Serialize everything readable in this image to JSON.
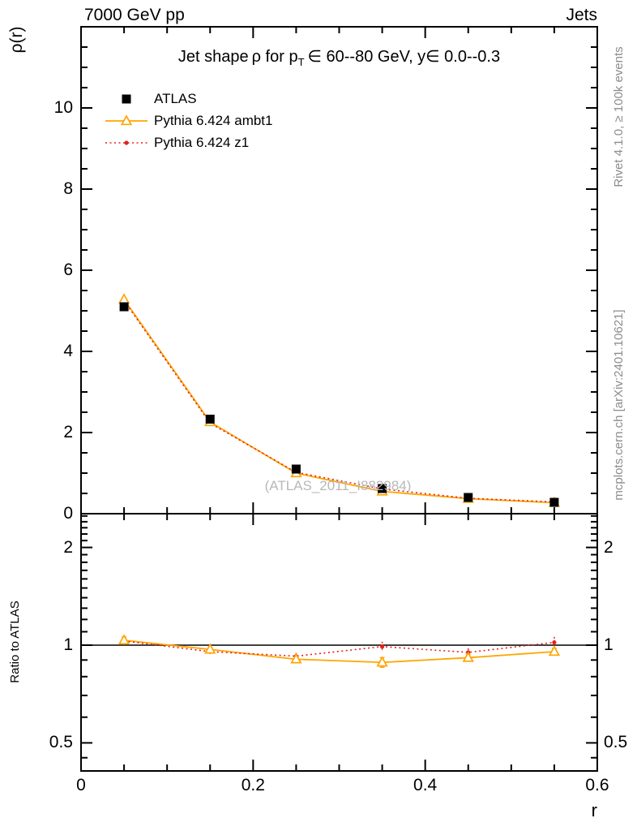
{
  "header": {
    "left": "7000 GeV pp",
    "right": "Jets"
  },
  "title": {
    "pre": "Jet shape ρ for p",
    "sub": "T",
    "post": " ∈ 60--80 GeV, y∈ 0.0--0.3"
  },
  "labels": {
    "y_main": "ρ(r)",
    "y_ratio": "Ratio to ATLAS",
    "x": "r"
  },
  "notes": {
    "rivet": "Rivet 4.1.0, ≥ 100k events",
    "mcplots": "mcplots.cern.ch [arXiv:2401.10621]"
  },
  "watermark": {
    "text": "(ATLAS_2011_I882984)"
  },
  "colors": {
    "atlas": "#000000",
    "ambt1": "#ffa500",
    "z1": "#e5231b",
    "frame": "#000000",
    "note_gray": "#8c8c8c",
    "watermark_gray": "#b8b8b8"
  },
  "chart_data": [
    {
      "type": "scatter",
      "panel": "main",
      "title": "Jet shape ρ for p_T ∈ 60--80 GeV, y ∈ 0.0--0.3",
      "xlabel": "r",
      "ylabel": "ρ(r)",
      "xlim": [
        0,
        0.6
      ],
      "ylim": [
        0,
        12
      ],
      "grid": false,
      "legend_position": "top-left",
      "x": [
        0.05,
        0.15,
        0.25,
        0.35,
        0.45,
        0.55
      ],
      "series": [
        {
          "name": "ATLAS",
          "marker": "filled-square",
          "line": "none",
          "values": [
            5.1,
            2.33,
            1.1,
            0.62,
            0.4,
            0.28
          ]
        },
        {
          "name": "Pythia 6.424 ambt1",
          "marker": "open-triangle",
          "line": "solid",
          "values": [
            5.28,
            2.26,
            1.0,
            0.55,
            0.37,
            0.27
          ]
        },
        {
          "name": "Pythia 6.424 z1",
          "marker": "filled-circle",
          "line": "dotted",
          "values": [
            5.25,
            2.23,
            1.02,
            0.61,
            0.38,
            0.29
          ]
        }
      ],
      "yticks": {
        "labels": [
          "0",
          "2",
          "4",
          "6",
          "8",
          "10"
        ],
        "values": [
          0,
          2,
          4,
          6,
          8,
          10
        ]
      },
      "xticks": {
        "labels": [
          "0",
          "0.2",
          "0.4",
          "0.6"
        ],
        "values": [
          0,
          0.2,
          0.4,
          0.6
        ]
      }
    },
    {
      "type": "line",
      "panel": "ratio",
      "ylabel": "Ratio to ATLAS",
      "yscale": "log",
      "ylim": [
        0.41,
        2.52
      ],
      "reference_line": 1,
      "x": [
        0.05,
        0.15,
        0.25,
        0.35,
        0.45,
        0.55
      ],
      "series": [
        {
          "name": "Pythia 6.424 ambt1",
          "marker": "open-triangle",
          "line": "solid",
          "values": [
            1.035,
            0.97,
            0.905,
            0.885,
            0.915,
            0.955
          ],
          "errors": [
            0.025,
            0.012,
            0.018,
            0.03,
            0.022,
            0.022
          ]
        },
        {
          "name": "Pythia 6.424 z1",
          "marker": "filled-circle",
          "line": "dotted",
          "values": [
            1.03,
            0.955,
            0.925,
            0.99,
            0.95,
            1.02
          ],
          "errors": [
            0.03,
            0.015,
            0.022,
            0.035,
            0.028,
            0.04
          ]
        }
      ],
      "yticks": {
        "labels": [
          "0.5",
          "1",
          "2"
        ],
        "values": [
          0.5,
          1,
          2
        ]
      }
    }
  ]
}
